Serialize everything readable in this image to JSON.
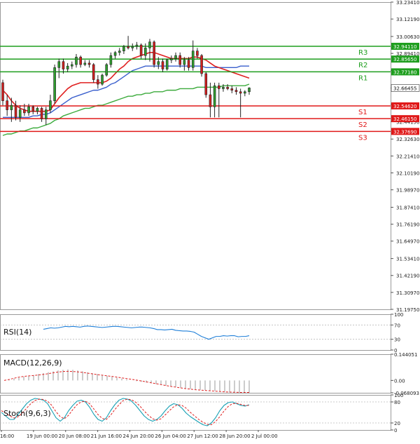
{
  "chart_data": {
    "type": "candlestick",
    "main": {
      "ylim": [
        31.1975,
        33.2341
      ],
      "price_ticks": [
        "33.23410",
        "33.12190",
        "33.00630",
        "32.89410",
        "32.78180",
        "32.66455",
        "32.55730",
        "32.44150",
        "32.32630",
        "32.21410",
        "32.10190",
        "31.98970",
        "31.87410",
        "31.76190",
        "31.64970",
        "31.53410",
        "31.42190",
        "31.30970",
        "31.19750"
      ],
      "current_price": {
        "value": 32.66455,
        "label": "32.66455"
      },
      "levels": [
        {
          "name": "R3",
          "value": 32.9411,
          "label": "32.94110",
          "kind": "resistance"
        },
        {
          "name": "R2",
          "value": 32.8565,
          "label": "32.85650",
          "kind": "resistance"
        },
        {
          "name": "R1",
          "value": 32.7718,
          "label": "32.77180",
          "kind": "resistance"
        },
        {
          "name": "S1",
          "value": 32.5462,
          "label": "32.54620",
          "kind": "support"
        },
        {
          "name": "S2",
          "value": 32.4615,
          "label": "32.46150",
          "kind": "support"
        },
        {
          "name": "S3",
          "value": 32.3769,
          "label": "32.37690",
          "kind": "support"
        }
      ],
      "candles": [
        {
          "o": 32.7,
          "h": 32.72,
          "l": 32.55,
          "c": 32.58
        },
        {
          "o": 32.58,
          "h": 32.62,
          "l": 32.48,
          "c": 32.52
        },
        {
          "o": 32.52,
          "h": 32.6,
          "l": 32.44,
          "c": 32.55
        },
        {
          "o": 32.55,
          "h": 32.58,
          "l": 32.45,
          "c": 32.47
        },
        {
          "o": 32.47,
          "h": 32.55,
          "l": 32.44,
          "c": 32.52
        },
        {
          "o": 32.52,
          "h": 32.56,
          "l": 32.48,
          "c": 32.5
        },
        {
          "o": 32.5,
          "h": 32.56,
          "l": 32.48,
          "c": 32.54
        },
        {
          "o": 32.54,
          "h": 32.55,
          "l": 32.49,
          "c": 32.51
        },
        {
          "o": 32.51,
          "h": 32.54,
          "l": 32.49,
          "c": 32.53
        },
        {
          "o": 32.53,
          "h": 32.54,
          "l": 32.44,
          "c": 32.46
        },
        {
          "o": 32.46,
          "h": 32.54,
          "l": 32.42,
          "c": 32.52
        },
        {
          "o": 32.52,
          "h": 32.62,
          "l": 32.5,
          "c": 32.58
        },
        {
          "o": 32.58,
          "h": 32.82,
          "l": 32.56,
          "c": 32.8
        },
        {
          "o": 32.8,
          "h": 32.86,
          "l": 32.73,
          "c": 32.84
        },
        {
          "o": 32.84,
          "h": 32.86,
          "l": 32.76,
          "c": 32.79
        },
        {
          "o": 32.79,
          "h": 32.83,
          "l": 32.77,
          "c": 32.81
        },
        {
          "o": 32.81,
          "h": 32.84,
          "l": 32.79,
          "c": 32.82
        },
        {
          "o": 32.82,
          "h": 32.89,
          "l": 32.8,
          "c": 32.87
        },
        {
          "o": 32.87,
          "h": 32.88,
          "l": 32.8,
          "c": 32.82
        },
        {
          "o": 32.82,
          "h": 32.85,
          "l": 32.81,
          "c": 32.83
        },
        {
          "o": 32.83,
          "h": 32.85,
          "l": 32.8,
          "c": 32.82
        },
        {
          "o": 32.82,
          "h": 32.83,
          "l": 32.7,
          "c": 32.72
        },
        {
          "o": 32.72,
          "h": 32.75,
          "l": 32.66,
          "c": 32.69
        },
        {
          "o": 32.69,
          "h": 32.76,
          "l": 32.68,
          "c": 32.75
        },
        {
          "o": 32.75,
          "h": 32.83,
          "l": 32.74,
          "c": 32.82
        },
        {
          "o": 32.82,
          "h": 32.9,
          "l": 32.8,
          "c": 32.88
        },
        {
          "o": 32.88,
          "h": 32.91,
          "l": 32.86,
          "c": 32.9
        },
        {
          "o": 32.9,
          "h": 32.93,
          "l": 32.88,
          "c": 32.91
        },
        {
          "o": 32.91,
          "h": 32.95,
          "l": 32.89,
          "c": 32.94
        },
        {
          "o": 32.94,
          "h": 33.01,
          "l": 32.92,
          "c": 32.93
        },
        {
          "o": 32.93,
          "h": 32.96,
          "l": 32.91,
          "c": 32.94
        },
        {
          "o": 32.94,
          "h": 32.97,
          "l": 32.92,
          "c": 32.95
        },
        {
          "o": 32.95,
          "h": 32.96,
          "l": 32.86,
          "c": 32.88
        },
        {
          "o": 32.88,
          "h": 32.96,
          "l": 32.85,
          "c": 32.93
        },
        {
          "o": 32.93,
          "h": 32.99,
          "l": 32.84,
          "c": 32.97
        },
        {
          "o": 32.97,
          "h": 32.98,
          "l": 32.8,
          "c": 32.82
        },
        {
          "o": 32.82,
          "h": 32.87,
          "l": 32.79,
          "c": 32.84
        },
        {
          "o": 32.84,
          "h": 32.86,
          "l": 32.77,
          "c": 32.79
        },
        {
          "o": 32.79,
          "h": 32.86,
          "l": 32.78,
          "c": 32.85
        },
        {
          "o": 32.85,
          "h": 32.88,
          "l": 32.83,
          "c": 32.86
        },
        {
          "o": 32.86,
          "h": 32.9,
          "l": 32.84,
          "c": 32.88
        },
        {
          "o": 32.88,
          "h": 32.9,
          "l": 32.8,
          "c": 32.82
        },
        {
          "o": 32.82,
          "h": 32.87,
          "l": 32.78,
          "c": 32.85
        },
        {
          "o": 32.85,
          "h": 32.87,
          "l": 32.78,
          "c": 32.8
        },
        {
          "o": 32.8,
          "h": 32.98,
          "l": 32.78,
          "c": 32.91
        },
        {
          "o": 32.91,
          "h": 32.93,
          "l": 32.86,
          "c": 32.88
        },
        {
          "o": 32.88,
          "h": 32.89,
          "l": 32.74,
          "c": 32.76
        },
        {
          "o": 32.76,
          "h": 32.77,
          "l": 32.6,
          "c": 32.62
        },
        {
          "o": 32.62,
          "h": 32.7,
          "l": 32.47,
          "c": 32.54
        },
        {
          "o": 32.54,
          "h": 32.7,
          "l": 32.47,
          "c": 32.68
        },
        {
          "o": 32.68,
          "h": 32.7,
          "l": 32.47,
          "c": 32.66
        },
        {
          "o": 32.66,
          "h": 32.69,
          "l": 32.64,
          "c": 32.67
        },
        {
          "o": 32.67,
          "h": 32.69,
          "l": 32.65,
          "c": 32.66
        },
        {
          "o": 32.66,
          "h": 32.68,
          "l": 32.63,
          "c": 32.65
        },
        {
          "o": 32.65,
          "h": 32.67,
          "l": 32.62,
          "c": 32.64
        },
        {
          "o": 32.64,
          "h": 32.66,
          "l": 32.47,
          "c": 32.63
        },
        {
          "o": 32.63,
          "h": 32.65,
          "l": 32.61,
          "c": 32.64
        },
        {
          "o": 32.64,
          "h": 32.67,
          "l": 32.62,
          "c": 32.665
        }
      ],
      "ma_fast_red": [
        32.65,
        32.62,
        32.58,
        32.55,
        32.53,
        32.52,
        32.51,
        32.51,
        32.51,
        32.51,
        32.51,
        32.52,
        32.56,
        32.6,
        32.63,
        32.66,
        32.68,
        32.69,
        32.7,
        32.7,
        32.7,
        32.7,
        32.7,
        32.7,
        32.71,
        32.73,
        32.76,
        32.79,
        32.81,
        32.84,
        32.86,
        32.87,
        32.88,
        32.89,
        32.9,
        32.9,
        32.89,
        32.88,
        32.87,
        32.86,
        32.86,
        32.86,
        32.86,
        32.86,
        32.87,
        32.87,
        32.86,
        32.85,
        32.83,
        32.81,
        32.8,
        32.79,
        32.78,
        32.77,
        32.76,
        32.75,
        32.74,
        32.73
      ],
      "ma_mid_blue": [
        32.47,
        32.47,
        32.47,
        32.47,
        32.47,
        32.47,
        32.47,
        32.48,
        32.48,
        32.49,
        32.49,
        32.5,
        32.52,
        32.54,
        32.56,
        32.58,
        32.6,
        32.61,
        32.62,
        32.63,
        32.64,
        32.65,
        32.65,
        32.66,
        32.67,
        32.69,
        32.7,
        32.72,
        32.74,
        32.76,
        32.78,
        32.79,
        32.8,
        32.81,
        32.81,
        32.81,
        32.81,
        32.81,
        32.81,
        32.81,
        32.81,
        32.81,
        32.81,
        32.81,
        32.81,
        32.81,
        32.81,
        32.8,
        32.8,
        32.8,
        32.8,
        32.8,
        32.8,
        32.8,
        32.8,
        32.81,
        32.81,
        32.81
      ],
      "ma_slow_green": [
        32.35,
        32.36,
        32.36,
        32.37,
        32.38,
        32.38,
        32.39,
        32.4,
        32.4,
        32.41,
        32.42,
        32.43,
        32.45,
        32.46,
        32.48,
        32.49,
        32.5,
        32.51,
        32.52,
        32.53,
        32.53,
        32.54,
        32.55,
        32.55,
        32.56,
        32.57,
        32.58,
        32.59,
        32.6,
        32.61,
        32.61,
        32.62,
        32.62,
        32.63,
        32.63,
        32.64,
        32.64,
        32.64,
        32.65,
        32.65,
        32.65,
        32.66,
        32.66,
        32.66,
        32.66,
        32.67,
        32.67,
        32.67,
        32.67,
        32.67,
        32.67,
        32.68,
        32.68,
        32.68,
        32.68,
        32.68,
        32.68,
        32.69
      ]
    },
    "x_labels": [
      "16:00",
      "19 Jun 00:00",
      "20 Jun 08:00",
      "21 Jun 16:00",
      "24 Jun 20:00",
      "26 Jun 04:00",
      "27 Jun 12:00",
      "28 Jun 20:00",
      "2 Jul 00:00"
    ],
    "rsi": {
      "label": "RSI(14)",
      "ticks": [
        "100",
        "70",
        "30",
        "0"
      ],
      "ylim": [
        0,
        100
      ],
      "values": [
        58,
        60,
        62,
        61,
        62,
        64,
        66,
        65,
        66,
        65,
        64,
        66,
        67,
        66,
        65,
        64,
        63,
        64,
        65,
        66,
        66,
        65,
        64,
        63,
        62,
        63,
        64,
        64,
        63,
        62,
        60,
        57,
        57,
        56,
        57,
        58,
        55,
        54,
        53,
        53,
        52,
        50,
        44,
        38,
        34,
        30,
        34,
        38,
        38,
        40,
        39,
        40,
        40,
        37,
        38,
        38,
        40
      ]
    },
    "macd": {
      "label": "MACD(12,26,9)",
      "ticks": [
        "0.144051",
        "0.00",
        "-0.068093"
      ],
      "ylim": [
        -0.068093,
        0.144051
      ],
      "histogram": [
        0.0,
        0.005,
        0.01,
        0.015,
        0.02,
        0.025,
        0.03,
        0.035,
        0.04,
        0.045,
        0.05,
        0.055,
        0.058,
        0.06,
        0.058,
        0.055,
        0.05,
        0.045,
        0.04,
        0.035,
        0.03,
        0.025,
        0.02,
        0.015,
        0.01,
        0.005,
        0.0,
        -0.004,
        -0.008,
        -0.012,
        -0.016,
        -0.02,
        -0.024,
        -0.028,
        -0.032,
        -0.036,
        -0.04,
        -0.044,
        -0.048,
        -0.05,
        -0.052,
        -0.054,
        -0.056,
        -0.058,
        -0.06,
        -0.062,
        -0.064,
        -0.066,
        -0.067,
        -0.067,
        -0.066
      ],
      "signal": [
        0.0,
        0.005,
        0.012,
        0.018,
        0.022,
        0.025,
        0.027,
        0.03,
        0.033,
        0.037,
        0.042,
        0.046,
        0.049,
        0.05,
        0.049,
        0.047,
        0.044,
        0.04,
        0.036,
        0.032,
        0.029,
        0.025,
        0.022,
        0.018,
        0.014,
        0.01,
        0.006,
        0.002,
        -0.003,
        -0.008,
        -0.013,
        -0.018,
        -0.023,
        -0.028,
        -0.033,
        -0.037,
        -0.041,
        -0.045,
        -0.048,
        -0.051,
        -0.053,
        -0.055,
        -0.057,
        -0.059,
        -0.061,
        -0.063,
        -0.064,
        -0.065,
        -0.066,
        -0.066,
        -0.066
      ]
    },
    "stoch": {
      "label": "Stoch(9,6,3)",
      "ticks": [
        "100",
        "80",
        "20",
        "0"
      ],
      "ylim": [
        0,
        100
      ],
      "k": [
        50,
        40,
        30,
        30,
        45,
        60,
        75,
        85,
        90,
        88,
        85,
        75,
        55,
        35,
        25,
        35,
        55,
        70,
        82,
        85,
        80,
        65,
        45,
        30,
        25,
        35,
        55,
        72,
        85,
        90,
        88,
        82,
        70,
        55,
        40,
        30,
        25,
        30,
        40,
        55,
        68,
        75,
        72,
        62,
        48,
        38,
        30,
        22,
        15,
        12,
        20,
        35,
        55,
        70,
        78,
        80,
        75,
        70,
        68,
        72
      ],
      "d": [
        55,
        48,
        40,
        34,
        38,
        48,
        62,
        75,
        84,
        88,
        87,
        82,
        70,
        52,
        38,
        32,
        42,
        58,
        72,
        80,
        82,
        75,
        60,
        44,
        33,
        30,
        42,
        58,
        72,
        84,
        88,
        86,
        79,
        68,
        54,
        42,
        32,
        28,
        32,
        43,
        55,
        66,
        72,
        70,
        62,
        50,
        40,
        30,
        22,
        16,
        15,
        24,
        38,
        54,
        67,
        75,
        76,
        73,
        70,
        70
      ]
    }
  }
}
